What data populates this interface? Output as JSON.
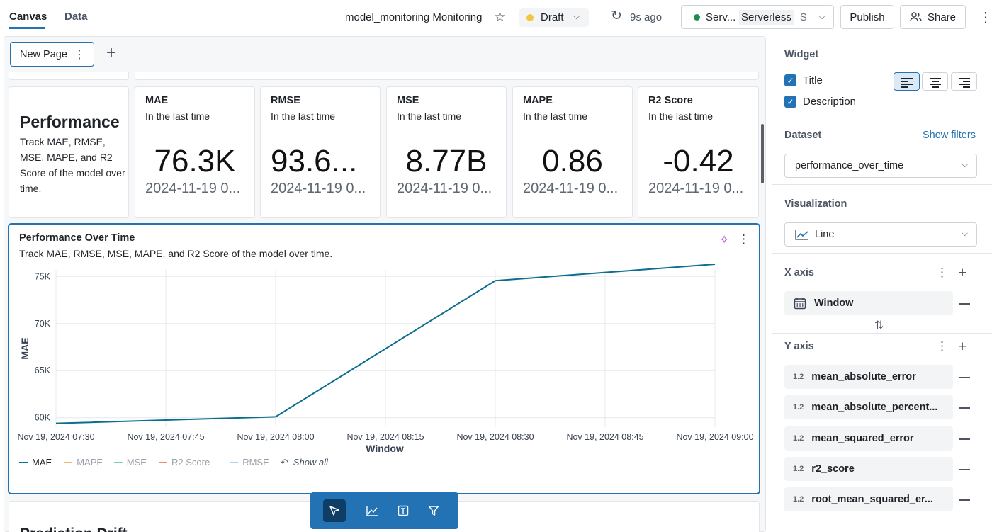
{
  "header": {
    "tabs": [
      "Canvas",
      "Data"
    ],
    "title": "model_monitoring Monitoring",
    "status": "Draft",
    "saved_ago": "9s ago",
    "compute": {
      "name": "Serv...",
      "type": "Serverless",
      "extra": "S"
    },
    "publish_label": "Publish",
    "share_label": "Share"
  },
  "canvas": {
    "page_tab": "New Page",
    "perf_card": {
      "title": "Performance",
      "description": "Track MAE, RMSE, MSE, MAPE, and R2 Score of the model over time."
    },
    "kpis": [
      {
        "title": "MAE",
        "subtitle": "In the last time",
        "value": "76.3K",
        "date": "2024-11-19 0..."
      },
      {
        "title": "RMSE",
        "subtitle": "In the last time",
        "value": "93.6...",
        "date": "2024-11-19 0..."
      },
      {
        "title": "MSE",
        "subtitle": "In the last time",
        "value": "8.77B",
        "date": "2024-11-19 0..."
      },
      {
        "title": "MAPE",
        "subtitle": "In the last time",
        "value": "0.86",
        "date": "2024-11-19 0..."
      },
      {
        "title": "R2 Score",
        "subtitle": "In the last time",
        "value": "-0.42",
        "date": "2024-11-19 0..."
      }
    ],
    "chart_card": {
      "title": "Performance Over Time",
      "description": "Track MAE, RMSE, MSE, MAPE, and R2 Score of the model over time."
    },
    "next_card_title": "Prediction Drift"
  },
  "chart_data": {
    "type": "line",
    "title": "Performance Over Time",
    "xlabel": "Window",
    "ylabel": "MAE",
    "x_ticks": [
      "Nov 19, 2024 07:30",
      "Nov 19, 2024 07:45",
      "Nov 19, 2024 08:00",
      "Nov 19, 2024 08:15",
      "Nov 19, 2024 08:30",
      "Nov 19, 2024 08:45",
      "Nov 19, 2024 09:00"
    ],
    "y_ticks": [
      "60K",
      "65K",
      "70K",
      "75K"
    ],
    "ylim": [
      59000,
      75700
    ],
    "xlim_minutes": [
      0,
      90
    ],
    "series": [
      {
        "name": "MAE",
        "color": "#0b6e8f",
        "x_minutes": [
          0,
          30,
          60,
          90
        ],
        "x": [
          "07:30",
          "08:00",
          "08:30",
          "09:00"
        ],
        "values": [
          59400,
          60100,
          74550,
          76300
        ]
      }
    ],
    "legend": [
      {
        "name": "MAE",
        "color": "#0b6e8f",
        "active": true
      },
      {
        "name": "MAPE",
        "color": "#f5b86a",
        "active": false
      },
      {
        "name": "MSE",
        "color": "#7ccfae",
        "active": false
      },
      {
        "name": "R2 Score",
        "color": "#f08a78",
        "active": false
      },
      {
        "name": "RMSE",
        "color": "#a7d9ee",
        "active": false
      }
    ],
    "show_all_label": "Show all",
    "grid": true,
    "legend_position": "bottom"
  },
  "panel": {
    "widget_label": "Widget",
    "title_option": "Title",
    "description_option": "Description",
    "dataset_label": "Dataset",
    "show_filters": "Show filters",
    "dataset_value": "performance_over_time",
    "visualization_label": "Visualization",
    "visualization_value": "Line",
    "x_axis_label": "X axis",
    "x_field": "Window",
    "y_axis_label": "Y axis",
    "y_fields": [
      {
        "type": "1.2",
        "name": "mean_absolute_error"
      },
      {
        "type": "1.2",
        "name": "mean_absolute_percent..."
      },
      {
        "type": "1.2",
        "name": "mean_squared_error"
      },
      {
        "type": "1.2",
        "name": "r2_score"
      },
      {
        "type": "1.2",
        "name": "root_mean_squared_er..."
      }
    ]
  }
}
